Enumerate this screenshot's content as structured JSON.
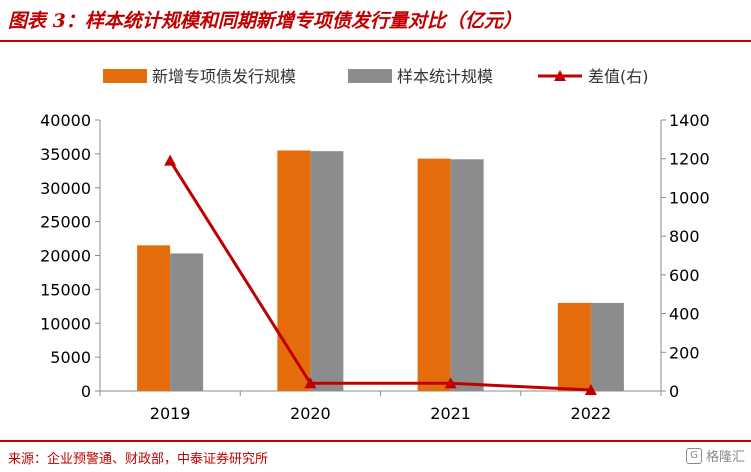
{
  "header": {
    "title": "图表 3：样本统计规模和同期新增专项债发行量对比（亿元）"
  },
  "footer": {
    "source": "来源：企业预警通、财政部，中泰证券研究所",
    "watermark": "格隆汇",
    "watermark_glyph": "G"
  },
  "colors": {
    "accent": "#c00000",
    "new_issue": "#e46c0a",
    "sample": "#8c8c8c",
    "diff": "#c00000"
  },
  "chart_data": {
    "type": "bar",
    "categories": [
      "2019",
      "2020",
      "2021",
      "2022"
    ],
    "series": [
      {
        "name": "新增专项债发行规模",
        "type": "bar",
        "axis": "left",
        "values": [
          21500,
          35500,
          34300,
          13000
        ]
      },
      {
        "name": "样本统计规模",
        "type": "bar",
        "axis": "left",
        "values": [
          20300,
          35400,
          34200,
          13000
        ]
      },
      {
        "name": "差值(右)",
        "type": "line",
        "axis": "right",
        "values": [
          1190,
          40,
          40,
          5
        ]
      }
    ],
    "ylim": [
      0,
      40000
    ],
    "yticks": [
      0,
      5000,
      10000,
      15000,
      20000,
      25000,
      30000,
      35000,
      40000
    ],
    "y2lim": [
      0,
      1400
    ],
    "y2ticks": [
      0,
      200,
      400,
      600,
      800,
      1000,
      1200,
      1400
    ],
    "legend": "top",
    "grid": false
  }
}
